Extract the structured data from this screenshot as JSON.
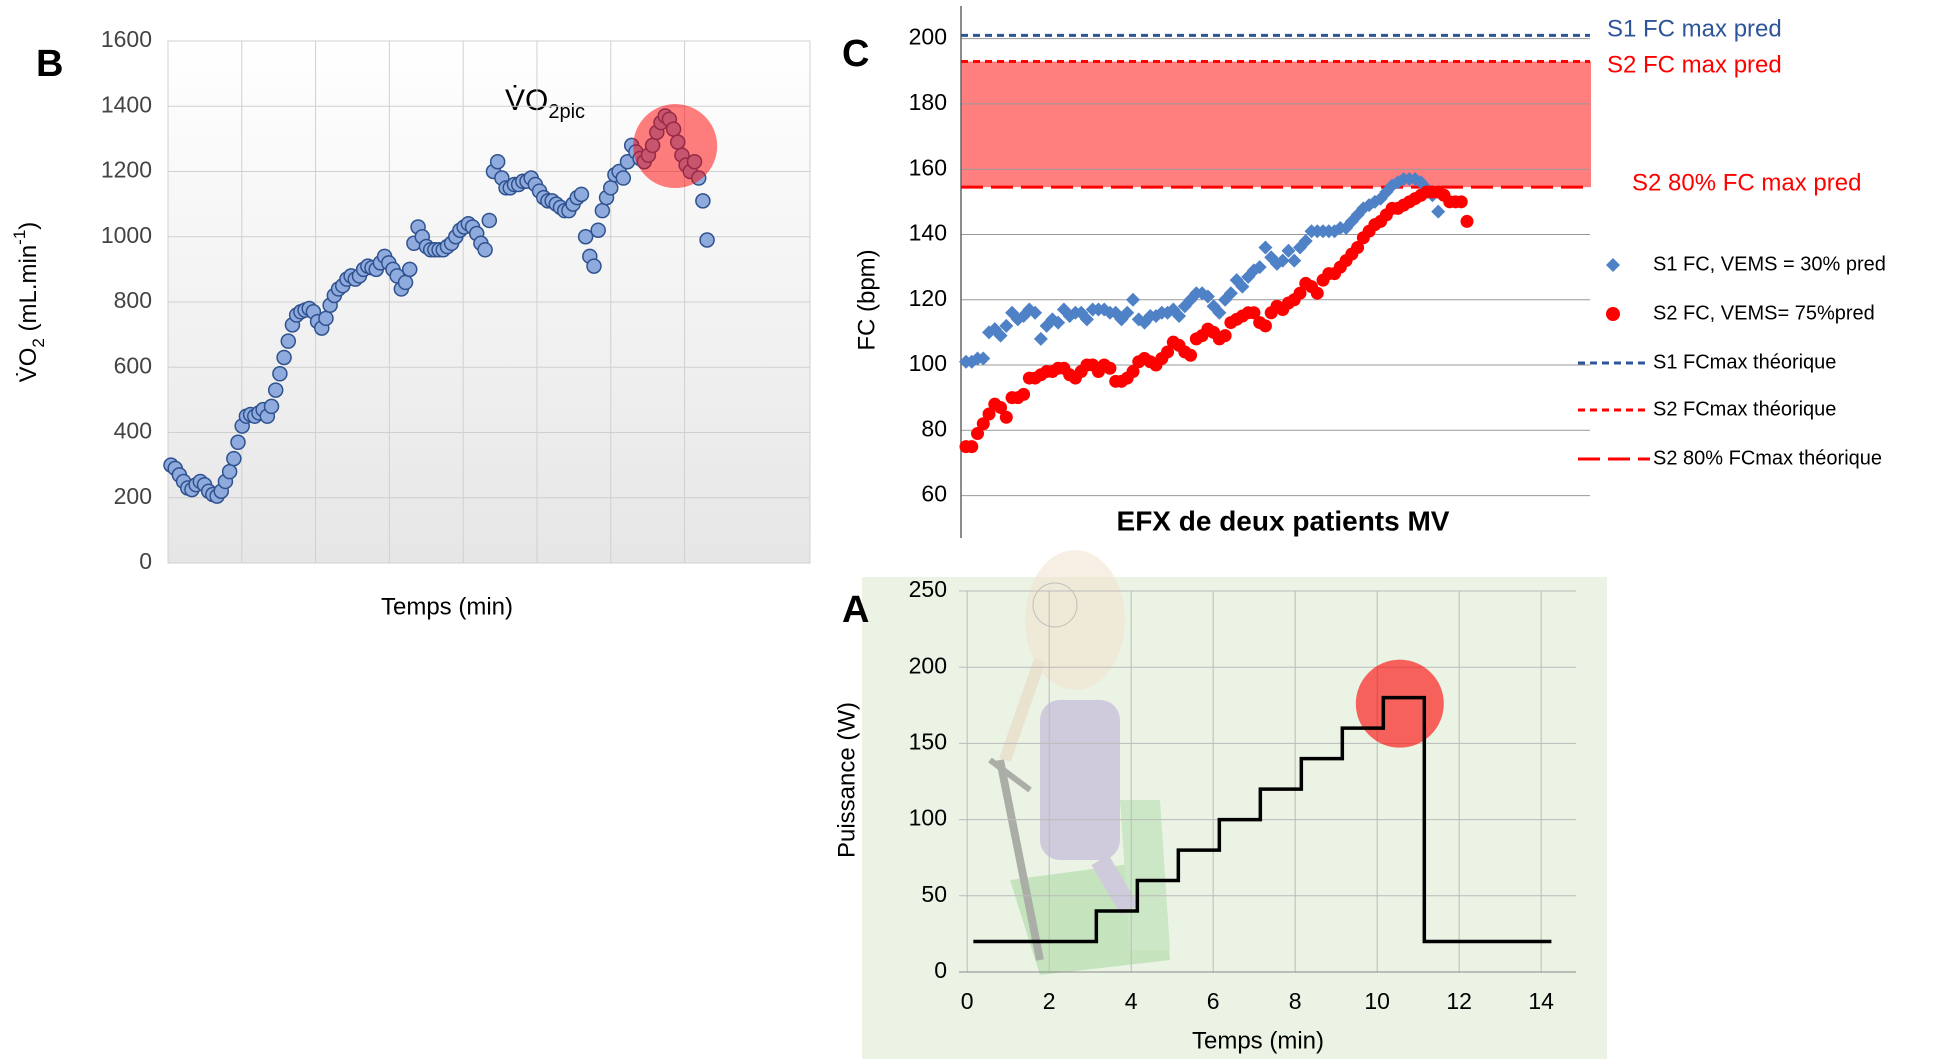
{
  "chart_data": [
    {
      "type": "scatter",
      "panel": "B",
      "ylabel": {
        "main": "V̇O",
        "sub": "2",
        "unit": " (mL.min",
        "sup": "-1",
        "end": ")"
      },
      "xlabel": "Temps (min)",
      "annotation": {
        "main": "V̇O",
        "sub": "2pic"
      },
      "ylim": [
        0,
        1600
      ],
      "yticks": [
        0,
        200,
        400,
        600,
        800,
        1000,
        1200,
        1400,
        1600
      ],
      "color": "#8faadc",
      "edge_color": "#2f528f",
      "highlight_color": "#ff0000",
      "grid": true,
      "values": [
        300,
        290,
        270,
        250,
        230,
        225,
        240,
        250,
        240,
        220,
        210,
        205,
        220,
        250,
        280,
        320,
        370,
        420,
        450,
        455,
        450,
        460,
        470,
        450,
        480,
        530,
        580,
        630,
        680,
        730,
        760,
        770,
        775,
        780,
        770,
        740,
        720,
        750,
        790,
        820,
        840,
        850,
        870,
        880,
        870,
        880,
        900,
        910,
        905,
        900,
        920,
        940,
        920,
        900,
        880,
        840,
        860,
        900,
        980,
        1030,
        1000,
        970,
        960,
        960,
        960,
        960,
        970,
        980,
        1000,
        1020,
        1030,
        1040,
        1030,
        1010,
        980,
        960,
        1050,
        1200,
        1230,
        1180,
        1150,
        1150,
        1160,
        1160,
        1170,
        1170,
        1180,
        1160,
        1140,
        1120,
        1110,
        1110,
        1100,
        1090,
        1080,
        1080,
        1100,
        1120,
        1130,
        1000,
        940,
        910,
        1020,
        1080,
        1120,
        1150,
        1190,
        1200,
        1180,
        1230,
        1280,
        1260,
        1240,
        1230,
        1250,
        1280,
        1320,
        1350,
        1370,
        1360,
        1330,
        1290,
        1250,
        1220,
        1200,
        1230,
        1180,
        1110,
        990
      ]
    },
    {
      "type": "scatter",
      "panel": "C",
      "title": "EFX de deux patients MV",
      "ylabel": "FC (bpm)",
      "ylim": [
        47,
        210
      ],
      "yticks": [
        60,
        80,
        100,
        120,
        140,
        160,
        180,
        200
      ],
      "grid": true,
      "band_color": "#ff7f7f",
      "series": [
        {
          "name": "S1 FC, VEMS = 30% pred",
          "color": "#4f81c7",
          "marker": "diamond",
          "values": [
            101,
            101,
            102,
            102,
            110,
            111,
            109,
            112,
            116,
            114,
            115,
            117,
            116,
            108,
            112,
            114,
            113,
            117,
            115,
            116,
            116,
            114,
            117,
            117,
            117,
            116,
            116,
            114,
            116,
            120,
            114,
            113,
            115,
            115,
            116,
            116,
            117,
            115,
            118,
            120,
            122,
            122,
            121,
            118,
            116,
            120,
            122,
            126,
            124,
            127,
            129,
            130,
            136,
            133,
            131,
            132,
            135,
            132,
            136,
            138,
            141,
            141,
            141,
            141,
            141,
            142,
            142,
            144,
            146,
            148,
            149,
            150,
            151,
            153,
            155,
            156,
            157,
            157,
            157,
            156,
            154,
            152,
            147
          ]
        },
        {
          "name": "S2 FC, VEMS= 75%pred",
          "color": "#ff0000",
          "marker": "circle",
          "values": [
            75,
            75,
            79,
            82,
            85,
            88,
            87,
            84,
            90,
            90,
            91,
            96,
            96,
            97,
            98,
            98,
            99,
            99,
            97,
            96,
            98,
            100,
            100,
            98,
            100,
            99,
            95,
            95,
            96,
            98,
            101,
            102,
            101,
            100,
            102,
            104,
            107,
            106,
            104,
            103,
            108,
            109,
            111,
            110,
            108,
            109,
            113,
            114,
            115,
            116,
            116,
            113,
            112,
            116,
            118,
            117,
            119,
            120,
            122,
            125,
            124,
            122,
            126,
            128,
            128,
            130,
            132,
            134,
            136,
            139,
            141,
            143,
            144,
            146,
            148,
            148,
            149,
            150,
            151,
            152,
            153,
            153,
            153,
            152,
            150,
            150,
            150,
            144
          ]
        }
      ],
      "reference_lines": [
        {
          "name": "S1 FCmax théorique",
          "annotation": "S1 FC max pred",
          "value": 201,
          "color": "#2e5597",
          "dash": "short"
        },
        {
          "name": "S2 FCmax théorique",
          "annotation": "S2 FC max pred",
          "value": 193,
          "color": "#ff0000",
          "dash": "short"
        },
        {
          "name": "S2 80% FCmax théorique",
          "annotation": "S2 80% FC max pred",
          "value": 154.5,
          "color": "#ff0000",
          "dash": "long"
        }
      ]
    },
    {
      "type": "line",
      "panel": "A",
      "xlabel": "Temps (min)",
      "ylabel": "Puissance (W)",
      "xlim": [
        -0.2,
        14.85
      ],
      "xticks": [
        0,
        2,
        4,
        6,
        8,
        10,
        12,
        14
      ],
      "ylim": [
        0,
        250
      ],
      "yticks": [
        0,
        50,
        100,
        150,
        200,
        250
      ],
      "grid": true,
      "color": "#000000",
      "highlight_color": "#ff0000",
      "x": [
        0.15,
        3.15,
        3.15,
        4.15,
        4.15,
        5.15,
        5.15,
        6.15,
        6.15,
        7.15,
        7.15,
        8.15,
        8.15,
        9.15,
        9.15,
        10.15,
        10.15,
        11.15,
        11.15,
        14.25
      ],
      "values": [
        20,
        20,
        40,
        40,
        60,
        60,
        80,
        80,
        100,
        100,
        120,
        120,
        140,
        140,
        160,
        160,
        180,
        180,
        20,
        20
      ]
    }
  ]
}
